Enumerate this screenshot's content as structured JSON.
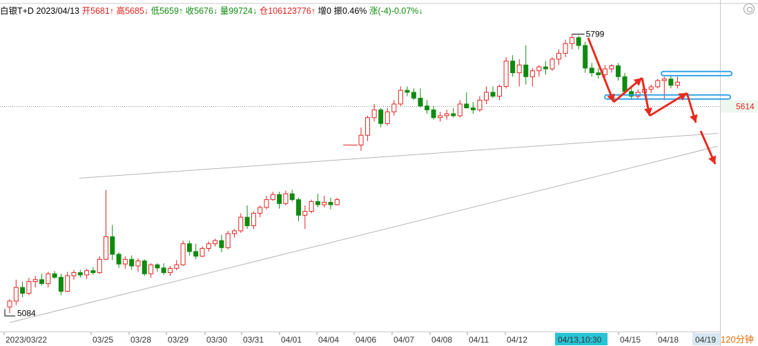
{
  "header": {
    "symbol": "白银T+D",
    "date": "2023/04/13",
    "open": "开5681↑",
    "high": "高5685↓",
    "low": "低5659↑",
    "close": "收5676↓",
    "volume": "量99724↓",
    "position": "仓106123776↑",
    "increase": "增0",
    "amplitude": "振0.46%",
    "change": "涨(-4)-0.07%↓"
  },
  "colors": {
    "up": "#e0201c",
    "down": "#0f8a0f",
    "annotation": "#e8291d",
    "support": "#2fa0e8",
    "highlight": "#27c4d6"
  },
  "icons": [
    "settings-icon"
  ],
  "chart_data": {
    "type": "candlestick",
    "period_label": "120分钟",
    "current_price": 5614,
    "high_label": "5799",
    "low_label": "5084",
    "y_range": [
      5060,
      5830
    ],
    "dates": [
      "2023/03/22",
      "03/25",
      "03/28",
      "03/29",
      "03/30",
      "03/31",
      "04/01",
      "04/04",
      "04/06",
      "04/07",
      "04/08",
      "04/11",
      "04/12",
      "04/13,10:30",
      "04/15",
      "04/18",
      "04/19"
    ],
    "highlighted_date": "04/13,10:30",
    "candles": [
      [
        5100,
        5120,
        5084,
        5115
      ],
      [
        5115,
        5170,
        5105,
        5150
      ],
      [
        5150,
        5165,
        5125,
        5135
      ],
      [
        5135,
        5175,
        5130,
        5165
      ],
      [
        5165,
        5180,
        5150,
        5170
      ],
      [
        5170,
        5185,
        5155,
        5160
      ],
      [
        5160,
        5190,
        5150,
        5185
      ],
      [
        5185,
        5192,
        5172,
        5176
      ],
      [
        5176,
        5185,
        5130,
        5140
      ],
      [
        5140,
        5190,
        5138,
        5180
      ],
      [
        5180,
        5195,
        5170,
        5188
      ],
      [
        5188,
        5195,
        5175,
        5182
      ],
      [
        5182,
        5198,
        5172,
        5193
      ],
      [
        5193,
        5202,
        5182,
        5188
      ],
      [
        5188,
        5230,
        5185,
        5222
      ],
      [
        5222,
        5400,
        5220,
        5280
      ],
      [
        5280,
        5310,
        5220,
        5235
      ],
      [
        5235,
        5240,
        5200,
        5210
      ],
      [
        5210,
        5230,
        5198,
        5222
      ],
      [
        5222,
        5232,
        5195,
        5205
      ],
      [
        5205,
        5225,
        5190,
        5218
      ],
      [
        5218,
        5222,
        5180,
        5185
      ],
      [
        5185,
        5212,
        5175,
        5208
      ],
      [
        5208,
        5212,
        5190,
        5200
      ],
      [
        5200,
        5212,
        5182,
        5188
      ],
      [
        5188,
        5205,
        5180,
        5199
      ],
      [
        5199,
        5220,
        5194,
        5208
      ],
      [
        5208,
        5270,
        5205,
        5262
      ],
      [
        5262,
        5270,
        5232,
        5242
      ],
      [
        5242,
        5262,
        5222,
        5230
      ],
      [
        5230,
        5255,
        5228,
        5250
      ],
      [
        5250,
        5268,
        5242,
        5262
      ],
      [
        5262,
        5275,
        5255,
        5270
      ],
      [
        5270,
        5285,
        5240,
        5252
      ],
      [
        5252,
        5295,
        5248,
        5288
      ],
      [
        5288,
        5300,
        5278,
        5295
      ],
      [
        5295,
        5340,
        5290,
        5330
      ],
      [
        5330,
        5360,
        5300,
        5308
      ],
      [
        5308,
        5345,
        5300,
        5340
      ],
      [
        5340,
        5360,
        5330,
        5355
      ],
      [
        5355,
        5385,
        5350,
        5375
      ],
      [
        5375,
        5395,
        5372,
        5388
      ],
      [
        5388,
        5395,
        5352,
        5365
      ],
      [
        5365,
        5398,
        5360,
        5390
      ],
      [
        5390,
        5400,
        5370,
        5375
      ],
      [
        5375,
        5380,
        5320,
        5335
      ],
      [
        5335,
        5360,
        5300,
        5345
      ],
      [
        5345,
        5375,
        5340,
        5370
      ],
      [
        5370,
        5390,
        5355,
        5362
      ],
      [
        5362,
        5385,
        5355,
        5368
      ],
      [
        5368,
        5380,
        5350,
        5362
      ],
      [
        5362,
        5380,
        5360,
        5375
      ],
      [
        5515,
        5560,
        5500,
        5540
      ],
      [
        5540,
        5590,
        5525,
        5585
      ],
      [
        5585,
        5620,
        5575,
        5605
      ],
      [
        5605,
        5610,
        5560,
        5570
      ],
      [
        5570,
        5610,
        5565,
        5600
      ],
      [
        5600,
        5630,
        5590,
        5620
      ],
      [
        5620,
        5665,
        5615,
        5655
      ],
      [
        5655,
        5665,
        5640,
        5650
      ],
      [
        5650,
        5660,
        5630,
        5635
      ],
      [
        5635,
        5660,
        5610,
        5615
      ],
      [
        5615,
        5630,
        5595,
        5605
      ],
      [
        5605,
        5615,
        5580,
        5585
      ],
      [
        5585,
        5600,
        5575,
        5590
      ],
      [
        5590,
        5605,
        5580,
        5595
      ],
      [
        5595,
        5610,
        5585,
        5590
      ],
      [
        5590,
        5630,
        5585,
        5620
      ],
      [
        5620,
        5650,
        5610,
        5610
      ],
      [
        5610,
        5625,
        5595,
        5605
      ],
      [
        5605,
        5640,
        5600,
        5630
      ],
      [
        5630,
        5665,
        5620,
        5650
      ],
      [
        5650,
        5665,
        5635,
        5640
      ],
      [
        5640,
        5670,
        5630,
        5665
      ],
      [
        5665,
        5740,
        5660,
        5730
      ],
      [
        5730,
        5745,
        5690,
        5700
      ],
      [
        5700,
        5735,
        5665,
        5720
      ],
      [
        5720,
        5770,
        5670,
        5690
      ],
      [
        5690,
        5712,
        5665,
        5705
      ],
      [
        5705,
        5720,
        5690,
        5715
      ],
      [
        5715,
        5730,
        5695,
        5710
      ],
      [
        5710,
        5740,
        5705,
        5735
      ],
      [
        5735,
        5760,
        5720,
        5750
      ],
      [
        5750,
        5785,
        5740,
        5775
      ],
      [
        5775,
        5799,
        5760,
        5790
      ],
      [
        5790,
        5795,
        5760,
        5770
      ],
      [
        5770,
        5780,
        5700,
        5712
      ],
      [
        5712,
        5725,
        5690,
        5700
      ],
      [
        5700,
        5712,
        5685,
        5695
      ],
      [
        5695,
        5720,
        5690,
        5710
      ],
      [
        5710,
        5722,
        5700,
        5718
      ],
      [
        5718,
        5725,
        5680,
        5690
      ],
      [
        5690,
        5700,
        5645,
        5652
      ],
      [
        5652,
        5660,
        5633,
        5640
      ],
      [
        5640,
        5658,
        5632,
        5650
      ],
      [
        5650,
        5665,
        5640,
        5658
      ],
      [
        5658,
        5670,
        5648,
        5664
      ],
      [
        5664,
        5685,
        5660,
        5680
      ],
      [
        5680,
        5690,
        5630,
        5684
      ],
      [
        5684,
        5692,
        5660,
        5668
      ],
      [
        5668,
        5690,
        5660,
        5676
      ]
    ],
    "support_lines": [
      5698,
      5638
    ],
    "trend_lines": "two ascending gray trendlines from lows and highs",
    "annotations": "red zig-zag arrows indicating projected downward move"
  }
}
